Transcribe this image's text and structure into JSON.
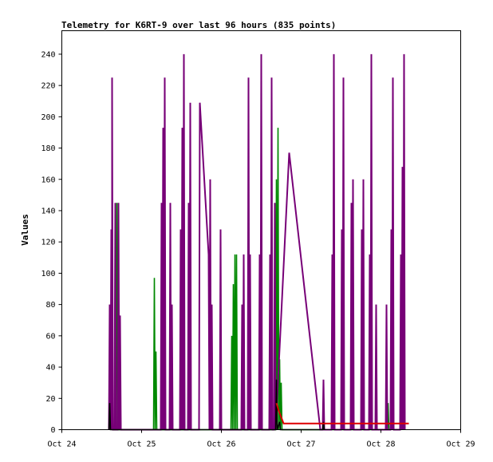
{
  "chart_data": {
    "type": "line",
    "title": "Telemetry for K6RT-9 over last 96 hours (835 points)",
    "xlabel": "",
    "ylabel": "Values",
    "xlim": [
      "Oct 24",
      "Oct 29"
    ],
    "ylim": [
      0,
      255
    ],
    "x_ticks": [
      "Oct 24",
      "Oct 25",
      "Oct 26",
      "Oct 27",
      "Oct 28",
      "Oct 29"
    ],
    "y_ticks": [
      0,
      20,
      40,
      60,
      80,
      100,
      120,
      140,
      160,
      180,
      200,
      220,
      240
    ],
    "grid": false,
    "legend": "none",
    "series": [
      {
        "color": "#008800",
        "x_unit": "days since Oct 24",
        "points": [
          [
            0.6,
            0
          ],
          [
            0.61,
            5
          ],
          [
            0.62,
            0
          ],
          [
            0.63,
            32
          ],
          [
            0.64,
            0
          ],
          [
            0.66,
            0
          ],
          [
            0.67,
            12
          ],
          [
            0.68,
            0
          ],
          [
            0.69,
            145
          ],
          [
            0.7,
            0
          ],
          [
            0.72,
            0
          ],
          [
            0.73,
            30
          ],
          [
            0.74,
            0
          ],
          [
            1.15,
            0
          ],
          [
            1.16,
            97
          ],
          [
            1.17,
            0
          ],
          [
            1.18,
            50
          ],
          [
            1.19,
            0
          ],
          [
            2.12,
            0
          ],
          [
            2.13,
            60
          ],
          [
            2.14,
            0
          ],
          [
            2.15,
            93
          ],
          [
            2.16,
            0
          ],
          [
            2.17,
            112
          ],
          [
            2.18,
            0
          ],
          [
            2.19,
            112
          ],
          [
            2.2,
            0
          ],
          [
            2.68,
            0
          ],
          [
            2.69,
            160
          ],
          [
            2.7,
            0
          ],
          [
            2.71,
            193
          ],
          [
            2.72,
            0
          ],
          [
            2.73,
            45
          ],
          [
            2.74,
            0
          ],
          [
            2.75,
            30
          ],
          [
            2.76,
            0
          ],
          [
            3.93,
            0
          ],
          [
            3.94,
            17
          ],
          [
            3.95,
            0
          ],
          [
            4.08,
            0
          ],
          [
            4.09,
            17
          ],
          [
            4.1,
            0
          ]
        ]
      },
      {
        "color": "#770077",
        "x_unit": "days since Oct 24",
        "points": [
          [
            0.59,
            0
          ],
          [
            0.6,
            80
          ],
          [
            0.61,
            0
          ],
          [
            0.62,
            128
          ],
          [
            0.63,
            0
          ],
          [
            0.63,
            225
          ],
          [
            0.64,
            0
          ],
          [
            0.66,
            0
          ],
          [
            0.67,
            145
          ],
          [
            0.68,
            0
          ],
          [
            0.7,
            0
          ],
          [
            0.71,
            145
          ],
          [
            0.72,
            0
          ],
          [
            0.73,
            73
          ],
          [
            0.74,
            0
          ],
          [
            1.24,
            0
          ],
          [
            1.25,
            145
          ],
          [
            1.26,
            0
          ],
          [
            1.27,
            193
          ],
          [
            1.28,
            0
          ],
          [
            1.29,
            225
          ],
          [
            1.3,
            0
          ],
          [
            1.35,
            0
          ],
          [
            1.36,
            145
          ],
          [
            1.37,
            0
          ],
          [
            1.38,
            80
          ],
          [
            1.39,
            0
          ],
          [
            1.48,
            0
          ],
          [
            1.49,
            128
          ],
          [
            1.5,
            0
          ],
          [
            1.51,
            193
          ],
          [
            1.52,
            0
          ],
          [
            1.53,
            240
          ],
          [
            1.54,
            0
          ],
          [
            1.58,
            0
          ],
          [
            1.59,
            145
          ],
          [
            1.6,
            0
          ],
          [
            1.61,
            209
          ],
          [
            1.62,
            0
          ],
          [
            1.72,
            0
          ],
          [
            1.73,
            209
          ],
          [
            1.84,
            112
          ],
          [
            1.85,
            0
          ],
          [
            1.86,
            160
          ],
          [
            1.87,
            0
          ],
          [
            1.88,
            80
          ],
          [
            1.89,
            0
          ],
          [
            1.98,
            0
          ],
          [
            1.99,
            128
          ],
          [
            2.0,
            0
          ],
          [
            2.25,
            0
          ],
          [
            2.26,
            80
          ],
          [
            2.27,
            0
          ],
          [
            2.28,
            112
          ],
          [
            2.29,
            0
          ],
          [
            2.33,
            0
          ],
          [
            2.34,
            225
          ],
          [
            2.35,
            0
          ],
          [
            2.36,
            112
          ],
          [
            2.37,
            0
          ],
          [
            2.47,
            0
          ],
          [
            2.48,
            112
          ],
          [
            2.49,
            0
          ],
          [
            2.5,
            240
          ],
          [
            2.51,
            0
          ],
          [
            2.6,
            0
          ],
          [
            2.61,
            112
          ],
          [
            2.62,
            0
          ],
          [
            2.63,
            225
          ],
          [
            2.64,
            0
          ],
          [
            2.66,
            0
          ],
          [
            2.67,
            145
          ],
          [
            2.68,
            0
          ],
          [
            2.85,
            177
          ],
          [
            3.24,
            0
          ],
          [
            3.27,
            0
          ],
          [
            3.28,
            32
          ],
          [
            3.29,
            0
          ],
          [
            3.38,
            0
          ],
          [
            3.39,
            112
          ],
          [
            3.4,
            0
          ],
          [
            3.41,
            240
          ],
          [
            3.42,
            0
          ],
          [
            3.5,
            0
          ],
          [
            3.51,
            128
          ],
          [
            3.52,
            0
          ],
          [
            3.53,
            225
          ],
          [
            3.54,
            0
          ],
          [
            3.62,
            0
          ],
          [
            3.63,
            145
          ],
          [
            3.64,
            0
          ],
          [
            3.65,
            160
          ],
          [
            3.66,
            0
          ],
          [
            3.75,
            0
          ],
          [
            3.76,
            128
          ],
          [
            3.77,
            0
          ],
          [
            3.78,
            160
          ],
          [
            3.79,
            0
          ],
          [
            3.85,
            0
          ],
          [
            3.86,
            112
          ],
          [
            3.87,
            0
          ],
          [
            3.88,
            240
          ],
          [
            3.89,
            0
          ],
          [
            3.93,
            0
          ],
          [
            3.94,
            80
          ],
          [
            3.95,
            0
          ],
          [
            4.06,
            0
          ],
          [
            4.07,
            80
          ],
          [
            4.08,
            0
          ],
          [
            4.12,
            0
          ],
          [
            4.13,
            128
          ],
          [
            4.14,
            0
          ],
          [
            4.15,
            225
          ],
          [
            4.16,
            0
          ],
          [
            4.24,
            0
          ],
          [
            4.25,
            112
          ],
          [
            4.26,
            0
          ],
          [
            4.27,
            168
          ],
          [
            4.28,
            0
          ],
          [
            4.29,
            240
          ],
          [
            4.3,
            0
          ]
        ]
      },
      {
        "color": "#000000",
        "x_unit": "days since Oct 24",
        "points": [
          [
            0.59,
            0
          ],
          [
            0.6,
            17
          ],
          [
            0.61,
            0
          ],
          [
            2.68,
            0
          ],
          [
            2.69,
            32
          ],
          [
            2.7,
            0
          ],
          [
            2.73,
            5
          ],
          [
            2.74,
            0
          ],
          [
            3.27,
            0
          ],
          [
            3.28,
            5
          ],
          [
            3.29,
            0
          ]
        ]
      },
      {
        "color": "#dd0000",
        "x_unit": "days since Oct 24",
        "points": [
          [
            2.69,
            17
          ],
          [
            2.72,
            12
          ],
          [
            2.78,
            4
          ],
          [
            3.2,
            4
          ],
          [
            3.5,
            4
          ],
          [
            3.9,
            4
          ],
          [
            4.3,
            4
          ],
          [
            4.35,
            4
          ]
        ]
      }
    ]
  }
}
